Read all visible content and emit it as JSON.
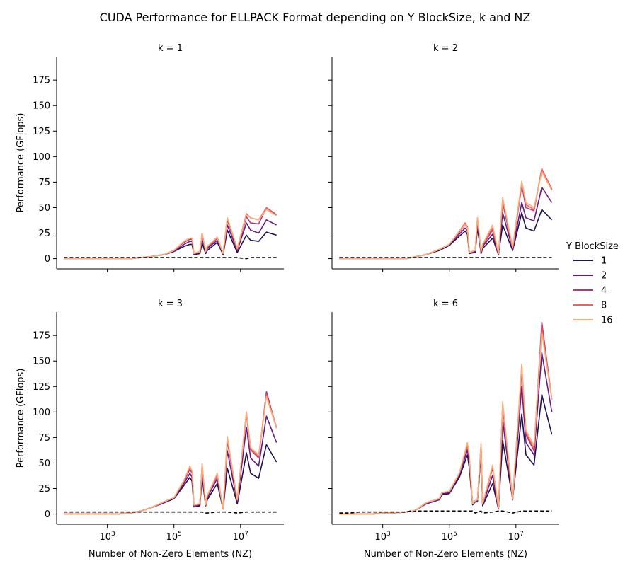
{
  "title": "CUDA Performance for ELLPACK Format depending on Y BlockSize, k and NZ",
  "legend": {
    "title": "Y BlockSize",
    "entries": [
      {
        "label": "1",
        "color": "#221150"
      },
      {
        "label": "2",
        "color": "#6a1c81"
      },
      {
        "label": "4",
        "color": "#b63679"
      },
      {
        "label": "8",
        "color": "#f2605c"
      },
      {
        "label": "16",
        "color": "#fbae78"
      }
    ]
  },
  "chart_data": {
    "type": "line",
    "xscale": "log",
    "xlim": [
      30.0,
      200000000.0
    ],
    "ylim": [
      -10,
      198
    ],
    "xlabel": "Number of Non-Zero Elements (NZ)",
    "ylabel": "Performance (GFlops)",
    "yticks": [
      0,
      25,
      50,
      75,
      100,
      125,
      150,
      175
    ],
    "xticks": [
      {
        "value": 1000,
        "base": "10",
        "exp": "3"
      },
      {
        "value": 100000,
        "base": "10",
        "exp": "5"
      },
      {
        "value": 10000000,
        "base": "10",
        "exp": "7"
      }
    ],
    "panels": [
      {
        "title": "k = 1",
        "x": [
          50,
          100,
          200,
          500,
          1000,
          2000,
          5000,
          10000,
          20000,
          50000,
          100000,
          200000,
          300000,
          350000,
          400000,
          600000,
          700000,
          900000,
          1000000,
          2000000,
          3000000,
          4000000,
          8000000,
          15000000,
          20000000,
          35000000,
          60000000,
          120000000
        ],
        "series": [
          {
            "name": "1",
            "values": [
              0,
              0,
              0,
              0,
              0,
              0,
              0,
              1,
              2,
              4,
              7,
              12,
              14,
              14,
              4,
              5,
              15,
              5,
              8,
              16,
              4,
              28,
              6,
              23,
              18,
              17,
              26,
              23
            ]
          },
          {
            "name": "2",
            "values": [
              0,
              0,
              0,
              0,
              0,
              0,
              0,
              1,
              2,
              4,
              7,
              14,
              17,
              17,
              5,
              6,
              20,
              6,
              10,
              18,
              5,
              33,
              8,
              35,
              28,
              25,
              38,
              33
            ]
          },
          {
            "name": "4",
            "values": [
              0,
              0,
              0,
              0,
              0,
              0,
              0,
              1,
              2,
              4,
              8,
              16,
              19,
              19,
              5,
              6,
              24,
              7,
              11,
              20,
              5,
              38,
              9,
              41,
              35,
              34,
              50,
              43
            ]
          },
          {
            "name": "8",
            "values": [
              0,
              0,
              0,
              0,
              0,
              0,
              0,
              1,
              2,
              4,
              8,
              17,
              20,
              20,
              5,
              7,
              25,
              7,
              12,
              21,
              5,
              40,
              10,
              44,
              40,
              38,
              50,
              42
            ]
          },
          {
            "name": "16",
            "values": [
              0,
              0,
              0,
              0,
              0,
              0,
              0,
              1,
              2,
              4,
              8,
              17,
              20,
              20,
              5,
              7,
              25,
              7,
              12,
              21,
              5,
              40,
              10,
              43,
              40,
              38,
              48,
              42
            ]
          }
        ],
        "baseline": [
          1,
          1,
          1,
          1,
          1,
          1,
          1,
          1,
          1,
          1,
          1,
          1,
          1,
          1,
          1,
          1,
          1,
          1,
          1,
          1,
          1,
          1,
          1,
          0,
          1,
          1,
          1,
          1
        ]
      },
      {
        "title": "k = 2",
        "x": [
          50,
          100,
          200,
          500,
          1000,
          2000,
          5000,
          10000,
          20000,
          50000,
          100000,
          200000,
          300000,
          350000,
          400000,
          600000,
          700000,
          900000,
          1000000,
          2000000,
          3000000,
          4000000,
          8000000,
          15000000,
          20000000,
          35000000,
          60000000,
          120000000
        ],
        "series": [
          {
            "name": "1",
            "values": [
              0,
              0,
              0,
              0,
              0,
              0,
              0,
              2,
              4,
              8,
              13,
              22,
              27,
              24,
              5,
              6,
              30,
              5,
              10,
              20,
              4,
              33,
              8,
              45,
              30,
              27,
              48,
              38
            ]
          },
          {
            "name": "2",
            "values": [
              0,
              0,
              0,
              0,
              0,
              0,
              0,
              2,
              4,
              9,
              14,
              24,
              30,
              27,
              6,
              7,
              34,
              6,
              12,
              24,
              4,
              45,
              9,
              55,
              40,
              37,
              70,
              55
            ]
          },
          {
            "name": "4",
            "values": [
              0,
              0,
              0,
              0,
              0,
              0,
              0,
              2,
              4,
              9,
              14,
              26,
              33,
              30,
              6,
              8,
              38,
              7,
              13,
              28,
              5,
              55,
              10,
              72,
              50,
              47,
              88,
              68
            ]
          },
          {
            "name": "8",
            "values": [
              0,
              0,
              0,
              0,
              0,
              0,
              0,
              2,
              4,
              9,
              14,
              27,
              35,
              31,
              6,
              8,
              40,
              7,
              14,
              30,
              5,
              58,
              11,
              75,
              53,
              48,
              88,
              67
            ]
          },
          {
            "name": "16",
            "values": [
              0,
              0,
              0,
              0,
              0,
              0,
              0,
              2,
              4,
              9,
              14,
              27,
              33,
              30,
              6,
              8,
              40,
              7,
              14,
              33,
              5,
              60,
              11,
              76,
              55,
              50,
              85,
              67
            ]
          }
        ],
        "baseline": [
          1,
          1,
          1,
          1,
          1,
          1,
          1,
          1,
          1,
          1,
          1,
          1,
          1,
          1,
          1,
          1,
          1,
          1,
          1,
          1,
          1,
          1,
          1,
          1,
          1,
          1,
          1,
          1
        ]
      },
      {
        "title": "k = 3",
        "x": [
          50,
          100,
          200,
          500,
          1000,
          2000,
          5000,
          10000,
          20000,
          50000,
          100000,
          200000,
          300000,
          350000,
          400000,
          600000,
          700000,
          900000,
          1000000,
          2000000,
          3000000,
          4000000,
          8000000,
          15000000,
          20000000,
          35000000,
          60000000,
          120000000
        ],
        "series": [
          {
            "name": "1",
            "values": [
              0,
              0,
              0,
              0,
              0,
              0,
              1,
              3,
              6,
              11,
              15,
              28,
              36,
              32,
              7,
              8,
              36,
              8,
              14,
              30,
              5,
              45,
              10,
              60,
              40,
              35,
              68,
              51
            ]
          },
          {
            "name": "2",
            "values": [
              0,
              0,
              0,
              0,
              0,
              0,
              1,
              3,
              6,
              11,
              16,
              30,
              40,
              36,
              8,
              9,
              42,
              8,
              16,
              35,
              5,
              62,
              12,
              85,
              55,
              47,
              96,
              70
            ]
          },
          {
            "name": "4",
            "values": [
              0,
              0,
              0,
              0,
              0,
              0,
              1,
              3,
              6,
              12,
              16,
              32,
              44,
              40,
              8,
              10,
              48,
              9,
              18,
              38,
              5,
              72,
              14,
              98,
              63,
              55,
              120,
              84
            ]
          },
          {
            "name": "8",
            "values": [
              0,
              0,
              0,
              0,
              0,
              0,
              1,
              3,
              6,
              12,
              16,
              33,
              46,
              42,
              9,
              10,
              49,
              9,
              18,
              39,
              5,
              75,
              14,
              100,
              64,
              56,
              117,
              85
            ]
          },
          {
            "name": "16",
            "values": [
              0,
              0,
              0,
              0,
              0,
              0,
              1,
              3,
              6,
              12,
              16,
              33,
              47,
              42,
              9,
              10,
              49,
              9,
              18,
              40,
              5,
              76,
              14,
              100,
              65,
              58,
              115,
              84
            ]
          }
        ],
        "baseline": [
          2,
          2,
          2,
          2,
          2,
          2,
          2,
          2,
          2,
          2,
          2,
          2,
          2,
          2,
          2,
          2,
          2,
          1,
          1,
          2,
          2,
          2,
          1,
          2,
          2,
          2,
          2,
          2
        ]
      },
      {
        "title": "k = 6",
        "x": [
          50,
          100,
          200,
          500,
          1000,
          2000,
          5000,
          7000,
          8000,
          10000,
          20000,
          50000,
          60000,
          100000,
          200000,
          350000,
          400000,
          500000,
          600000,
          700000,
          900000,
          1000000,
          2000000,
          3000000,
          4000000,
          8000000,
          15000000,
          20000000,
          35000000,
          60000000,
          120000000
        ],
        "series": [
          {
            "name": "1",
            "values": [
              0,
              0,
              0,
              0,
              1,
              1,
              2,
              3,
              3,
              4,
              10,
              14,
              19,
              20,
              36,
              58,
              45,
              9,
              12,
              12,
              60,
              8,
              30,
              5,
              72,
              15,
              98,
              58,
              48,
              117,
              78
            ]
          },
          {
            "name": "2",
            "values": [
              0,
              0,
              0,
              0,
              1,
              1,
              2,
              3,
              3,
              4,
              10,
              14,
              20,
              21,
              38,
              63,
              50,
              10,
              12,
              13,
              65,
              9,
              38,
              5,
              92,
              14,
              125,
              70,
              58,
              158,
              100
            ]
          },
          {
            "name": "4",
            "values": [
              0,
              0,
              0,
              0,
              1,
              1,
              2,
              3,
              3,
              4,
              11,
              15,
              21,
              22,
              40,
              67,
              55,
              10,
              13,
              14,
              68,
              10,
              45,
              6,
              105,
              14,
              140,
              78,
              62,
              188,
              112
            ]
          },
          {
            "name": "8",
            "values": [
              0,
              0,
              0,
              0,
              1,
              1,
              2,
              3,
              3,
              4,
              11,
              15,
              21,
              22,
              40,
              68,
              56,
              10,
              13,
              14,
              68,
              10,
              46,
              6,
              108,
              15,
              145,
              80,
              64,
              183,
              112
            ]
          },
          {
            "name": "16",
            "values": [
              0,
              0,
              0,
              0,
              1,
              1,
              2,
              3,
              3,
              4,
              11,
              15,
              21,
              22,
              40,
              70,
              57,
              10,
              13,
              14,
              69,
              10,
              48,
              6,
              110,
              15,
              147,
              82,
              67,
              178,
              112
            ]
          }
        ],
        "baseline": [
          1,
          1,
          2,
          2,
          2,
          2,
          2,
          3,
          2,
          3,
          3,
          3,
          3,
          3,
          3,
          3,
          3,
          3,
          1,
          2,
          3,
          1,
          2,
          3,
          3,
          1,
          3,
          3,
          3,
          3,
          3
        ]
      }
    ]
  }
}
